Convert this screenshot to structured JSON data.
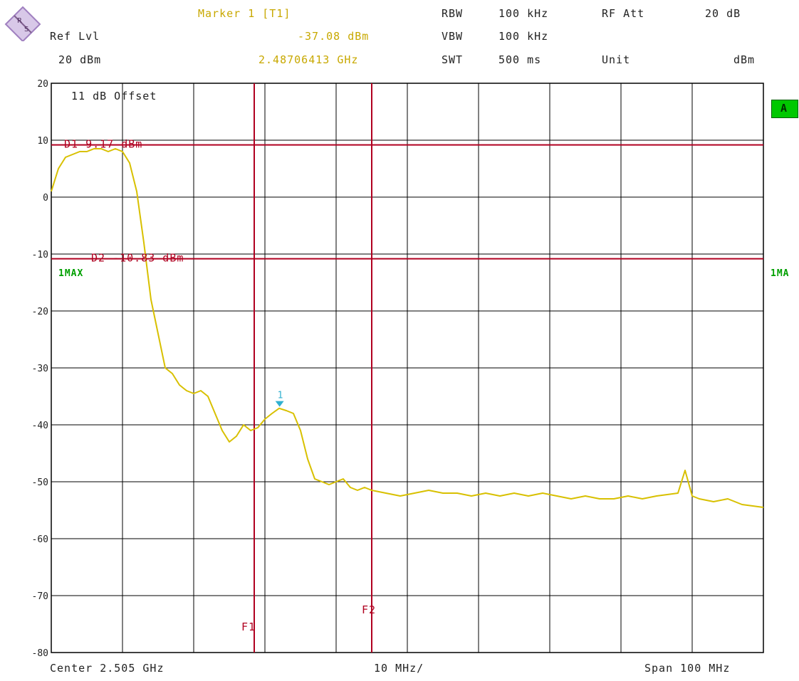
{
  "header": {
    "marker_title": "Marker 1 [T1]",
    "marker_level": "-37.08 dBm",
    "marker_freq": "2.48706413 GHz",
    "ref_lvl_label": "Ref Lvl",
    "ref_lvl_value": "20 dBm",
    "rbw_label": "RBW",
    "rbw_value": "100 kHz",
    "vbw_label": "VBW",
    "vbw_value": "100 kHz",
    "swt_label": "SWT",
    "swt_value": "500 ms",
    "rfatt_label": "RF Att",
    "rfatt_value": "20 dB",
    "unit_label": "Unit",
    "unit_value": "dBm"
  },
  "footer": {
    "center": "Center 2.505 GHz",
    "per_div": "10 MHz/",
    "span": "Span 100 MHz"
  },
  "annotations": {
    "offset": "11 dB Offset",
    "d1": "D1 9.17 dBm",
    "d2": "D2 -10.83 dBm",
    "trace_left": "1MAX",
    "trace_right": "1MA",
    "badge": "A",
    "marker_num": "1",
    "f1": "F1",
    "f2": "F2"
  },
  "chart_data": {
    "type": "line",
    "ylim": [
      -80,
      20
    ],
    "yticks": [
      "20",
      "10",
      "0",
      "-10",
      "-20",
      "-30",
      "-40",
      "-50",
      "-60",
      "-70",
      "-80"
    ],
    "xlim_mhz": [
      2455,
      2555
    ],
    "grid": true,
    "display_lines": [
      {
        "name": "D1",
        "value": 9.17
      },
      {
        "name": "D2",
        "value": -10.83
      }
    ],
    "frequency_lines": [
      {
        "name": "F1",
        "x": 2483.5
      },
      {
        "name": "F2",
        "x": 2500
      }
    ],
    "marker": {
      "name": "1",
      "x": 2487.06413,
      "y": -37.08
    },
    "colors": {
      "trace": "#d8c000",
      "lines": "#b00020",
      "grid": "#000000",
      "marker": "#30b0d0"
    },
    "series": [
      {
        "x": [
          2455,
          2456,
          2457,
          2458,
          2459,
          2460,
          2461,
          2462,
          2463,
          2464,
          2465,
          2466,
          2467,
          2468,
          2469,
          2470,
          2471,
          2472,
          2473,
          2474,
          2475,
          2476,
          2477,
          2478,
          2479,
          2480,
          2481,
          2482,
          2483,
          2484,
          2485,
          2486,
          2487,
          2488,
          2489,
          2490,
          2491,
          2492,
          2493,
          2494,
          2495,
          2496,
          2497,
          2498,
          2499,
          2500,
          2502,
          2504,
          2506,
          2508,
          2510,
          2512,
          2514,
          2516,
          2518,
          2520,
          2522,
          2524,
          2526,
          2528,
          2530,
          2532,
          2534,
          2536,
          2538,
          2540,
          2543,
          2544,
          2545,
          2546,
          2548,
          2550,
          2552,
          2555
        ],
        "values": [
          1,
          5,
          7,
          7.5,
          8,
          8,
          8.5,
          8.5,
          8,
          8.5,
          8,
          6,
          1,
          -8,
          -18,
          -24,
          -30,
          -31,
          -33,
          -34,
          -34.5,
          -34,
          -35,
          -38,
          -41,
          -43,
          -42,
          -40,
          -41,
          -40.5,
          -39,
          -38,
          -37.1,
          -37.5,
          -38,
          -41,
          -46,
          -49.5,
          -50,
          -50.5,
          -50,
          -49.5,
          -51,
          -51.5,
          -51,
          -51.5,
          -52,
          -52.5,
          -52,
          -51.5,
          -52,
          -52,
          -52.5,
          -52,
          -52.5,
          -52,
          -52.5,
          -52,
          -52.5,
          -53,
          -52.5,
          -53,
          -53,
          -52.5,
          -53,
          -52.5,
          -52,
          -48,
          -52.5,
          -53,
          -53.5,
          -53,
          -54,
          -54.5
        ]
      }
    ]
  }
}
